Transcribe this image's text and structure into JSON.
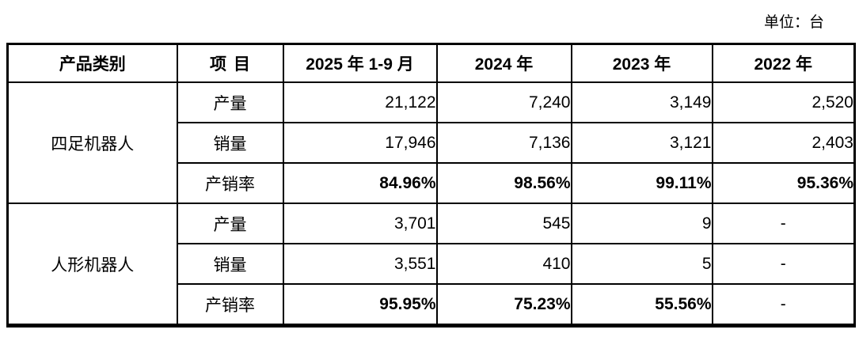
{
  "unit_label": "单位：台",
  "colors": {
    "text": "#000000",
    "border": "#000000",
    "background": "#ffffff"
  },
  "table": {
    "columns": [
      "产品类别",
      "项目",
      "2025 年 1-9 月",
      "2024 年",
      "2023 年",
      "2022 年"
    ],
    "groups": [
      {
        "category": "四足机器人",
        "rows": [
          {
            "item": "产量",
            "bold": false,
            "values": [
              "21,122",
              "7,240",
              "3,149",
              "2,520"
            ]
          },
          {
            "item": "销量",
            "bold": false,
            "values": [
              "17,946",
              "7,136",
              "3,121",
              "2,403"
            ]
          },
          {
            "item": "产销率",
            "bold": true,
            "values": [
              "84.96%",
              "98.56%",
              "99.11%",
              "95.36%"
            ]
          }
        ]
      },
      {
        "category": "人形机器人",
        "rows": [
          {
            "item": "产量",
            "bold": false,
            "values": [
              "3,701",
              "545",
              "9",
              "-"
            ]
          },
          {
            "item": "销量",
            "bold": false,
            "values": [
              "3,551",
              "410",
              "5",
              "-"
            ]
          },
          {
            "item": "产销率",
            "bold": true,
            "values": [
              "95.95%",
              "75.23%",
              "55.56%",
              "-"
            ]
          }
        ]
      }
    ]
  }
}
